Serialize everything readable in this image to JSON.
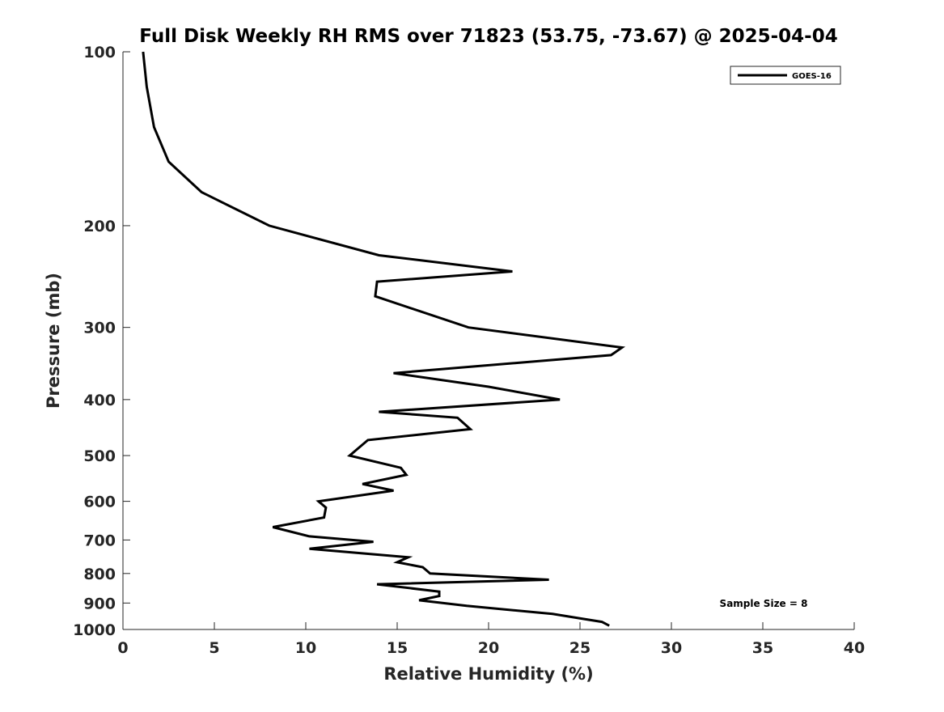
{
  "chart_data": {
    "type": "line",
    "title": "Full Disk Weekly RH RMS over 71823 (53.75, -73.67) @ 2025-04-04",
    "xlabel": "Relative Humidity (%)",
    "ylabel": "Pressure (mb)",
    "xlim": [
      0,
      40
    ],
    "ylim": [
      1000,
      100
    ],
    "yscale": "log",
    "grid": false,
    "legend_placement": "top-right",
    "x_ticks": [
      "0",
      "5",
      "10",
      "15",
      "20",
      "25",
      "30",
      "35",
      "40"
    ],
    "y_ticks": [
      "100",
      "200",
      "300",
      "400",
      "500",
      "600",
      "700",
      "800",
      "900",
      "1000"
    ],
    "annotation": "Sample Size = 8",
    "line_color": "#000000",
    "series": [
      {
        "name": "GOES-16",
        "points": [
          [
            1.1,
            100
          ],
          [
            1.3,
            115
          ],
          [
            1.7,
            135
          ],
          [
            2.5,
            155
          ],
          [
            4.3,
            175
          ],
          [
            8.0,
            200
          ],
          [
            14.0,
            225
          ],
          [
            21.3,
            240
          ],
          [
            13.9,
            250
          ],
          [
            13.8,
            265
          ],
          [
            18.9,
            300
          ],
          [
            27.3,
            325
          ],
          [
            26.7,
            335
          ],
          [
            14.8,
            360
          ],
          [
            20.0,
            380
          ],
          [
            23.9,
            400
          ],
          [
            14.0,
            420
          ],
          [
            18.3,
            430
          ],
          [
            19.0,
            450
          ],
          [
            13.4,
            470
          ],
          [
            12.4,
            500
          ],
          [
            15.2,
            525
          ],
          [
            15.5,
            540
          ],
          [
            13.1,
            560
          ],
          [
            14.8,
            575
          ],
          [
            10.7,
            600
          ],
          [
            11.1,
            615
          ],
          [
            11.0,
            640
          ],
          [
            8.2,
            665
          ],
          [
            10.2,
            690
          ],
          [
            13.7,
            705
          ],
          [
            10.2,
            725
          ],
          [
            15.6,
            750
          ],
          [
            15.0,
            765
          ],
          [
            16.4,
            780
          ],
          [
            16.8,
            800
          ],
          [
            23.3,
            820
          ],
          [
            13.9,
            835
          ],
          [
            17.3,
            860
          ],
          [
            17.3,
            875
          ],
          [
            16.2,
            890
          ],
          [
            18.8,
            910
          ],
          [
            23.5,
            940
          ],
          [
            26.2,
            970
          ],
          [
            26.6,
            985
          ]
        ]
      }
    ]
  }
}
